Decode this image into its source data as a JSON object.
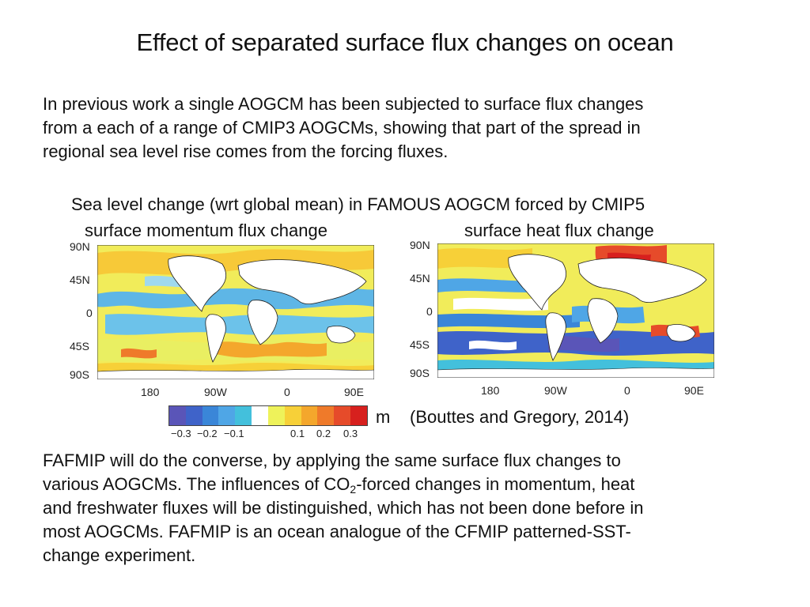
{
  "title": "Effect of separated surface flux changes on ocean",
  "intro": {
    "line1": "In previous work a single AOGCM has been subjected to surface flux changes",
    "line2": "from a each of a range of CMIP3 AOGCMs, showing that part of the spread in",
    "line3": "regional sea level rise comes from the forcing fluxes."
  },
  "figure": {
    "caption": "Sea level change (wrt global mean) in FAMOUS AOGCM forced by CMIP5",
    "left_panel_title": "surface momentum flux change",
    "right_panel_title": "surface heat flux change",
    "lat_labels": [
      "90N",
      "45N",
      "0",
      "45S",
      "90S"
    ],
    "lon_labels": [
      "180",
      "90W",
      "0",
      "90E"
    ],
    "colorbar": {
      "colors": [
        "#5a55b8",
        "#3f63c9",
        "#3a86d8",
        "#4fa6e6",
        "#43c0dc",
        "#ffffff",
        "#eef25a",
        "#f7d038",
        "#f4a72c",
        "#ef7a2a",
        "#e64b2a",
        "#d7201e"
      ],
      "tick_labels": [
        "−0.3",
        "−0.2",
        "−0.1",
        "0.1",
        "0.2",
        "0.3"
      ],
      "unit": "m"
    },
    "citation": "(Bouttes and Gregory, 2014)"
  },
  "fafmip": {
    "line1": "FAFMIP will do the converse, by applying the same surface flux changes to",
    "line2_pre": "various AOGCMs. The influences of CO",
    "line2_sub": "2",
    "line2_post": "-forced changes in momentum, heat",
    "line3": "and freshwater fluxes will be distinguished, which has not been done before in",
    "line4": "most AOGCMs. FAFMIP is an ocean analogue of the CFMIP patterned-SST-",
    "line5": "change experiment."
  }
}
